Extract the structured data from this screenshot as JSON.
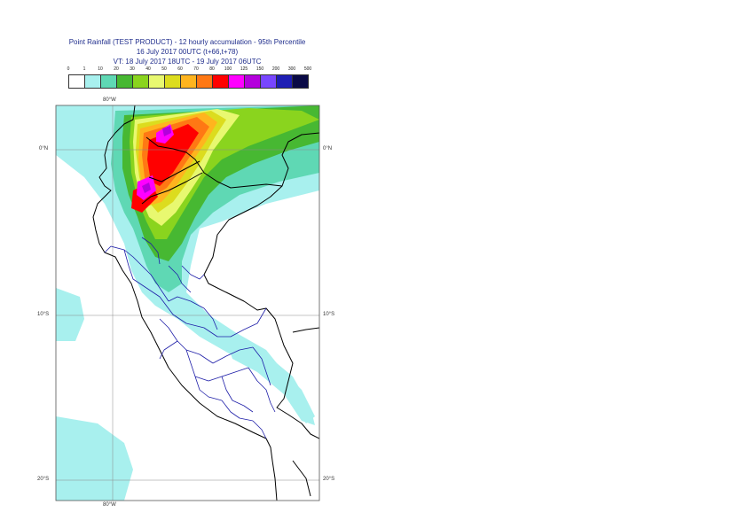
{
  "title": {
    "line1": "Point Rainfall (TEST PRODUCT) - 12 hourly accumulation - 95th Percentile",
    "line2": "16 July 2017 00UTC (t+66,t+78)",
    "line3": "VT: 18 July 2017 18UTC - 19 July 2017 06UTC"
  },
  "legend": {
    "ticks": [
      "0",
      "1",
      "10",
      "20",
      "30",
      "40",
      "50",
      "60",
      "70",
      "80",
      "100",
      "125",
      "150",
      "200",
      "300",
      "500"
    ],
    "colors": [
      "#ffffff",
      "#a8f0ee",
      "#5fd8b4",
      "#47b832",
      "#8ad41e",
      "#e8f870",
      "#dcdc1e",
      "#ffb41e",
      "#ff7814",
      "#ff0000",
      "#ff00ff",
      "#b400dc",
      "#7846ff",
      "#1e1eb4",
      "#0a0a46"
    ]
  },
  "axes": {
    "top_lon": "80°W",
    "bottom_lon": "80°W",
    "lat_0_left": "0°N",
    "lat_0_right": "0°N",
    "lat_10_left": "10°S",
    "lat_10_right": "10°S",
    "lat_20_left": "20°S",
    "lat_20_right": "20°S"
  }
}
